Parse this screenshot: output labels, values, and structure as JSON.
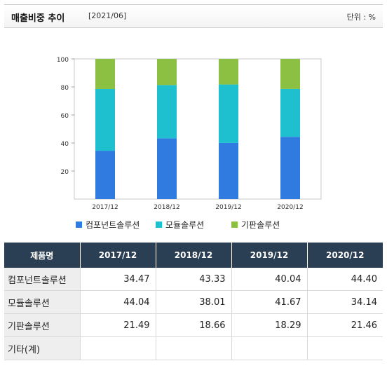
{
  "header": {
    "title": "매출비중 추이",
    "date": "[2021/06]",
    "unit": "단위 : %"
  },
  "chart_data": {
    "type": "bar",
    "stacked": true,
    "categories": [
      "2017/12",
      "2018/12",
      "2019/12",
      "2020/12"
    ],
    "series": [
      {
        "name": "컴포넌트솔루션",
        "values": [
          34.47,
          43.33,
          40.04,
          44.4
        ],
        "color": "#2f7be0"
      },
      {
        "name": "모듈솔루션",
        "values": [
          44.04,
          38.01,
          41.67,
          34.14
        ],
        "color": "#1ec0d0"
      },
      {
        "name": "기판솔루션",
        "values": [
          21.49,
          18.66,
          18.29,
          21.46
        ],
        "color": "#8cc043"
      }
    ],
    "ylim": [
      0,
      100
    ],
    "yticks": [
      20,
      40,
      60,
      80,
      100
    ],
    "grid": false,
    "legend": "bottom"
  },
  "table": {
    "header_label": "제품명",
    "columns": [
      "2017/12",
      "2018/12",
      "2019/12",
      "2020/12"
    ],
    "rows": [
      {
        "label": "컴포넌트솔루션",
        "values": [
          "34.47",
          "43.33",
          "40.04",
          "44.40"
        ]
      },
      {
        "label": "모듈솔루션",
        "values": [
          "44.04",
          "38.01",
          "41.67",
          "34.14"
        ]
      },
      {
        "label": "기판솔루션",
        "values": [
          "21.49",
          "18.66",
          "18.29",
          "21.46"
        ]
      },
      {
        "label": "기타(계)",
        "values": [
          "",
          "",
          "",
          ""
        ]
      }
    ]
  }
}
